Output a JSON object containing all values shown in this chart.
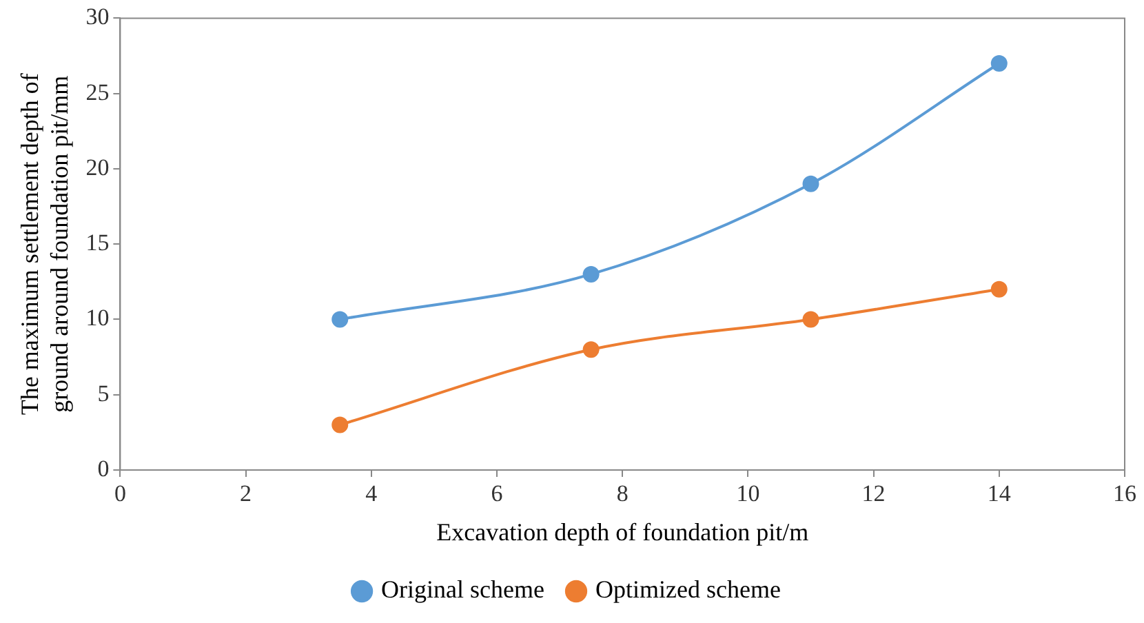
{
  "chart_data": {
    "type": "line",
    "xlabel": "Excavation depth of foundation pit/m",
    "ylabel": "The maximum settlement depth of ground around foundation pit/mm",
    "x": [
      3.5,
      7.5,
      11,
      14
    ],
    "series": [
      {
        "name": "Original scheme",
        "color": "#5b9bd5",
        "values": [
          10,
          13,
          19,
          27
        ]
      },
      {
        "name": "Optimized scheme",
        "color": "#ed7d31",
        "values": [
          3,
          8,
          10,
          12
        ]
      }
    ],
    "xlim": [
      0,
      16
    ],
    "xticks": [
      0,
      2,
      4,
      6,
      8,
      10,
      12,
      14,
      16
    ],
    "ylim": [
      0,
      30
    ],
    "yticks": [
      0,
      5,
      10,
      15,
      20,
      25,
      30
    ],
    "grid": false,
    "legend": "bottom",
    "marker": "circle",
    "line_style": "solid"
  }
}
